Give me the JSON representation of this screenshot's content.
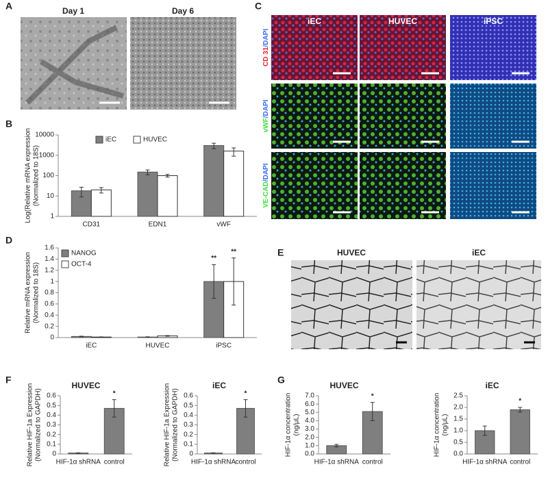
{
  "panel_labels": [
    "A",
    "B",
    "C",
    "D",
    "E",
    "F",
    "G"
  ],
  "panel_a": {
    "captions": [
      "Day 1",
      "Day 6"
    ]
  },
  "panel_c": {
    "columns": [
      "iEC",
      "HUVEC",
      "iPSC"
    ],
    "rows": [
      [
        "CD 31",
        "/DAPI"
      ],
      [
        "vWF",
        "/DAPI"
      ],
      [
        "VE-CAD",
        "/DAPI"
      ]
    ],
    "marker_colors": [
      "#e8202a",
      "#3ddc3d",
      "#3ddc3d"
    ],
    "stain_color": "#3a6cf0"
  },
  "panel_e": {
    "captions": [
      "HUVEC",
      "iEC"
    ]
  },
  "chart_data": [
    {
      "type": "bar",
      "log_scale": true,
      "legend": "top-left",
      "y_label": [
        "Log(Relative mRNA expression",
        "(Normalized to 18S)"
      ],
      "categories": [
        "CD31",
        "EDN1",
        "vWF"
      ],
      "series": [
        {
          "name": "iEC",
          "color": "#7f7f7f",
          "values": [
            18,
            150,
            3000
          ],
          "errors": [
            9,
            40,
            900
          ]
        },
        {
          "name": "HUVEC",
          "color": "#ffffff",
          "values": [
            20,
            100,
            1600
          ],
          "errors": [
            6,
            15,
            700
          ]
        }
      ],
      "ylim": [
        1,
        10000
      ],
      "yticks": [
        1,
        10,
        100,
        1000,
        10000
      ]
    },
    {
      "type": "bar",
      "log_scale": false,
      "legend": "top-left",
      "y_label": [
        "Relative mRNA expression",
        "(Normalized to 18S)"
      ],
      "categories": [
        "iEC",
        "HUVEC",
        "iPSC"
      ],
      "series": [
        {
          "name": "NANOG",
          "color": "#7f7f7f",
          "values": [
            0.02,
            0.01,
            1.0
          ],
          "errors": [
            0.005,
            0.004,
            0.3
          ],
          "annotations": [
            null,
            null,
            "**"
          ]
        },
        {
          "name": "OCT-4",
          "color": "#ffffff",
          "values": [
            0.01,
            0.03,
            1.0
          ],
          "errors": [
            0.003,
            0.006,
            0.42
          ],
          "annotations": [
            null,
            null,
            "**"
          ]
        }
      ],
      "ylim": [
        0,
        1.6
      ],
      "yticks": [
        0,
        0.2,
        0.4,
        0.6,
        0.8,
        1,
        1.2,
        1.4,
        1.6
      ]
    },
    {
      "type": "bar",
      "log_scale": false,
      "title": "HUVEC",
      "y_label": [
        "Relative HIF-1a Expression",
        "(Normalized to GAPDH)"
      ],
      "categories": [
        "HIF-1α shRNA",
        "control"
      ],
      "series": [
        {
          "color": "#7f7f7f",
          "values": [
            0.01,
            0.47
          ],
          "errors": [
            0.002,
            0.09
          ],
          "annotations": [
            null,
            "*"
          ]
        }
      ],
      "ylim": [
        0,
        0.6
      ],
      "yticks": [
        0,
        0.1,
        0.2,
        0.3,
        0.4,
        0.5,
        0.6
      ]
    },
    {
      "type": "bar",
      "log_scale": false,
      "title": "iEC",
      "y_label": [
        "Relative HIF-1a Expression",
        "(Normalized to GAPDH)"
      ],
      "categories": [
        "HIF-1α shRNA",
        "control"
      ],
      "series": [
        {
          "color": "#7f7f7f",
          "values": [
            0.01,
            0.47
          ],
          "errors": [
            0.002,
            0.09
          ],
          "annotations": [
            null,
            "*"
          ]
        }
      ],
      "ylim": [
        0,
        0.6
      ],
      "yticks": [
        0,
        0.1,
        0.2,
        0.3,
        0.4,
        0.5,
        0.6
      ]
    },
    {
      "type": "bar",
      "log_scale": false,
      "title": "HUVEC",
      "y_label": [
        "HIF-1α concentration",
        "(ng/μL)"
      ],
      "categories": [
        "HIF-1α shRNA",
        "control"
      ],
      "series": [
        {
          "color": "#7f7f7f",
          "values": [
            1.0,
            5.1
          ],
          "errors": [
            0.15,
            1.1
          ],
          "annotations": [
            null,
            "*"
          ]
        }
      ],
      "ylim": [
        0,
        7
      ],
      "yticks": [
        {
          "value": 0,
          "label": "0.0"
        },
        {
          "value": 1,
          "label": "1.0"
        },
        {
          "value": 2,
          "label": "2.0"
        },
        {
          "value": 3,
          "label": "3.0"
        },
        {
          "value": 4,
          "label": "4.0"
        },
        {
          "value": 5,
          "label": "5.0"
        },
        {
          "value": 6,
          "label": "6.0"
        },
        {
          "value": 7,
          "label": "7.0"
        }
      ]
    },
    {
      "type": "bar",
      "log_scale": false,
      "title": "iEC",
      "y_label": [
        "HIF-1α concentration",
        "(ng/μL)"
      ],
      "categories": [
        "HIF-1α shRNA",
        "control"
      ],
      "series": [
        {
          "color": "#7f7f7f",
          "values": [
            1.0,
            1.9
          ],
          "errors": [
            0.2,
            0.1
          ],
          "annotations": [
            null,
            "*"
          ]
        }
      ],
      "ylim": [
        0,
        2.5
      ],
      "yticks": [
        {
          "value": 0,
          "label": "0.0"
        },
        0.5,
        {
          "value": 1,
          "label": "1.0"
        },
        1.5,
        {
          "value": 2,
          "label": "2.0"
        },
        2.5
      ]
    }
  ]
}
